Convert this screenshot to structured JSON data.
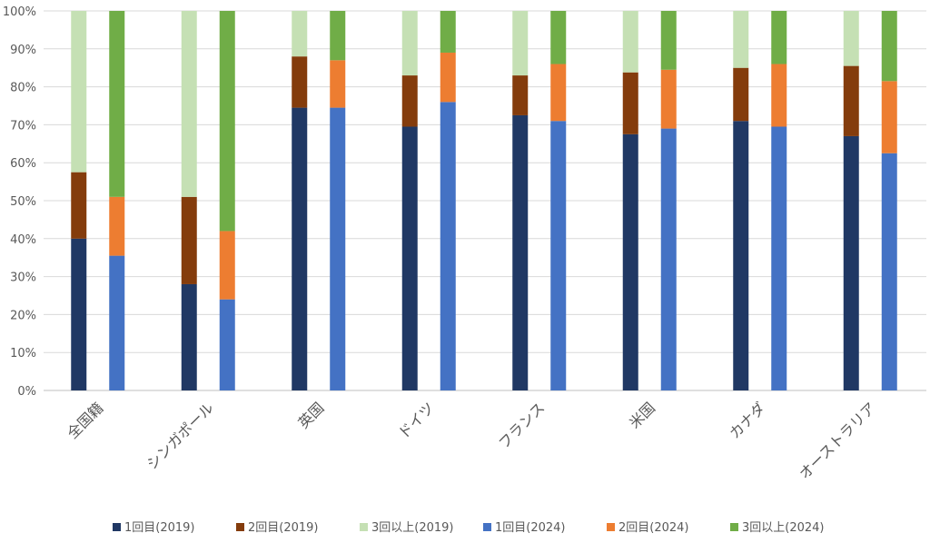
{
  "chart_data": {
    "type": "bar",
    "stacked": true,
    "percent": true,
    "categories": [
      "全国籍",
      "シンガポール",
      "英国",
      "ドイツ",
      "フランス",
      "米国",
      "カナダ",
      "オーストラリア"
    ],
    "groups": [
      "2019",
      "2024"
    ],
    "series": [
      {
        "name": "1回目(2019)",
        "group": "2019",
        "color": "#203864",
        "values": [
          40,
          28,
          74.5,
          69.5,
          72.5,
          67.5,
          71,
          67
        ]
      },
      {
        "name": "2回目(2019)",
        "group": "2019",
        "color": "#843c0c",
        "values": [
          17.5,
          23,
          13.5,
          13.5,
          10.5,
          16.3,
          14,
          18.5
        ]
      },
      {
        "name": "3回以上(2019)",
        "group": "2019",
        "color": "#c5e0b4",
        "values": [
          42.5,
          49,
          12,
          17,
          17,
          16.2,
          15,
          14.5
        ]
      },
      {
        "name": "1回目(2024)",
        "group": "2024",
        "color": "#4472c4",
        "values": [
          35.5,
          24,
          74.5,
          76,
          71,
          69,
          69.5,
          62.5
        ]
      },
      {
        "name": "2回目(2024)",
        "group": "2024",
        "color": "#ed7d31",
        "values": [
          15.5,
          18,
          12.5,
          13,
          15,
          15.5,
          16.5,
          19
        ]
      },
      {
        "name": "3回以上(2024)",
        "group": "2024",
        "color": "#70ad47",
        "values": [
          49,
          58,
          13,
          11,
          14,
          15.5,
          14,
          18.5
        ]
      }
    ],
    "ylim": [
      0,
      100
    ],
    "yticks": [
      "0%",
      "10%",
      "20%",
      "30%",
      "40%",
      "50%",
      "60%",
      "70%",
      "80%",
      "90%",
      "100%"
    ],
    "grid": true,
    "legend_position": "bottom"
  }
}
